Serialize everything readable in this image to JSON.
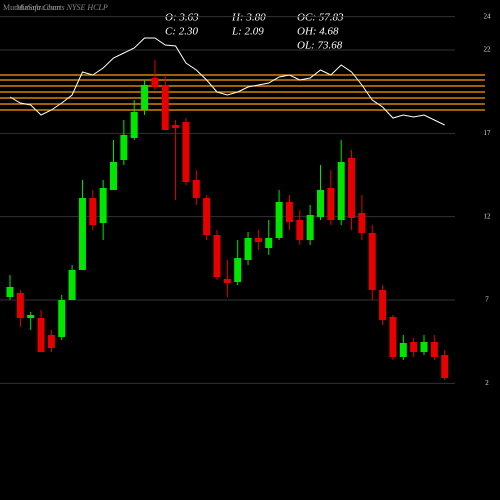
{
  "chart_data": {
    "type": "candlestick",
    "watermark": "MunafaSutra.com",
    "title": "Munafa Charts NYSE HCLP",
    "stats": [
      "O: 3.63",
      "C: 2.30",
      "H: 3.80",
      "L: 2.09",
      "OC: 57.83",
      "OH: 4.68",
      "OL: 73.68"
    ],
    "open": [
      7.18,
      7.42,
      5.92,
      5.92,
      4.9,
      4.78,
      7.0,
      8.8,
      13.12,
      11.62,
      13.6,
      15.4,
      16.72,
      18.4,
      20.32,
      19.9,
      17.5,
      17.68,
      14.2,
      13.12,
      10.9,
      8.26,
      8.08,
      9.4,
      10.72,
      10.12,
      10.72,
      12.88,
      11.8,
      10.6,
      11.98,
      13.72,
      11.8,
      15.52,
      12.22,
      11.02,
      7.6,
      5.98,
      3.58,
      4.48,
      3.88,
      4.48,
      3.7
    ],
    "high": [
      8.5,
      7.6,
      6.28,
      6.4,
      5.2,
      7.3,
      9.1,
      14.2,
      13.6,
      14.2,
      16.6,
      17.8,
      19.0,
      20.2,
      21.4,
      20.5,
      17.8,
      17.92,
      14.8,
      13.3,
      11.2,
      9.4,
      10.6,
      11.08,
      11.2,
      11.8,
      13.6,
      13.3,
      12.4,
      12.7,
      15.1,
      14.8,
      16.6,
      16.0,
      13.3,
      11.5,
      7.9,
      6.1,
      4.9,
      4.72,
      4.9,
      4.9,
      4.0
    ],
    "low": [
      7.0,
      5.38,
      5.2,
      3.88,
      3.88,
      4.6,
      7.0,
      8.8,
      11.2,
      10.6,
      13.6,
      15.1,
      16.6,
      18.1,
      19.6,
      17.2,
      13.0,
      13.9,
      12.7,
      10.6,
      8.2,
      7.18,
      7.9,
      9.1,
      10.0,
      9.7,
      10.6,
      11.2,
      10.3,
      10.3,
      11.8,
      11.5,
      11.5,
      11.2,
      10.6,
      7.0,
      5.5,
      3.4,
      3.4,
      3.58,
      3.7,
      3.4,
      2.2
    ],
    "close": [
      7.78,
      5.92,
      6.1,
      3.88,
      4.12,
      7.0,
      8.8,
      13.12,
      11.5,
      13.72,
      15.28,
      16.9,
      18.28,
      19.9,
      19.78,
      17.2,
      17.32,
      14.08,
      13.12,
      10.9,
      8.38,
      8.02,
      9.52,
      10.72,
      10.48,
      10.72,
      12.88,
      11.68,
      10.6,
      12.1,
      13.6,
      11.8,
      15.28,
      11.92,
      11.02,
      7.6,
      5.8,
      3.58,
      4.42,
      3.88,
      4.48,
      3.58,
      2.32
    ],
    "up_color": "#00e600",
    "down_color": "#e60000",
    "overlay": {
      "color": "#ffffff",
      "values": [
        19.18,
        18.82,
        18.7,
        18.1,
        18.4,
        18.82,
        19.3,
        20.68,
        20.5,
        20.92,
        21.52,
        21.82,
        22.12,
        22.72,
        22.72,
        22.3,
        22.24,
        21.22,
        20.8,
        20.2,
        19.48,
        19.3,
        19.48,
        19.78,
        19.9,
        20.02,
        20.38,
        20.5,
        20.2,
        20.32,
        20.8,
        20.5,
        21.1,
        20.68,
        19.9,
        19.0,
        18.58,
        17.92,
        18.1,
        17.98,
        18.1,
        17.8,
        17.5
      ]
    },
    "levels": {
      "color": "#ff9900",
      "values": [
        20.5,
        20.2,
        19.84,
        19.48,
        19.12,
        18.76,
        18.4
      ]
    },
    "ylim": [
      -5,
      25
    ],
    "yticks": [
      2,
      7,
      12,
      17,
      22,
      24
    ],
    "grid": true
  }
}
